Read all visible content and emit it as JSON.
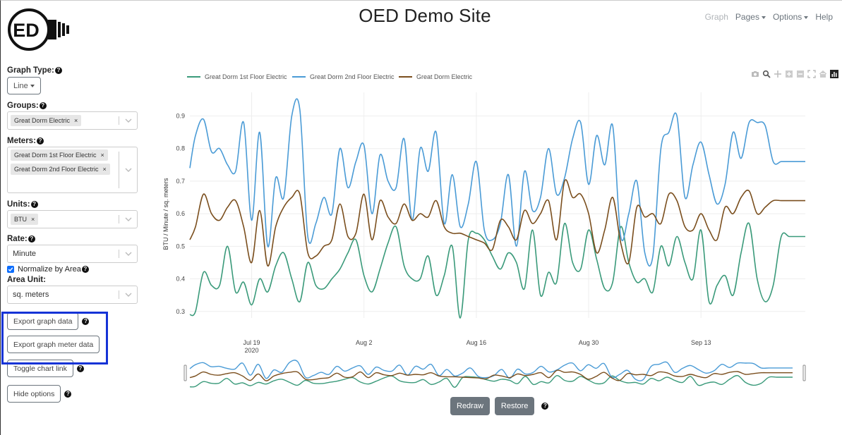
{
  "header": {
    "logo_text": "ED",
    "title": "OED Demo Site",
    "nav": [
      {
        "label": "Graph",
        "disabled": true,
        "dropdown": false
      },
      {
        "label": "Pages",
        "disabled": false,
        "dropdown": true
      },
      {
        "label": "Options",
        "disabled": false,
        "dropdown": true
      },
      {
        "label": "Help",
        "disabled": false,
        "dropdown": false
      }
    ]
  },
  "sidebar": {
    "graph_type": {
      "label": "Graph Type:",
      "value": "Line"
    },
    "groups": {
      "label": "Groups:",
      "tags": [
        "Great Dorm Electric"
      ]
    },
    "meters": {
      "label": "Meters:",
      "tags": [
        "Great Dorm 1st Floor Electric",
        "Great Dorm 2nd Floor Electric"
      ]
    },
    "units": {
      "label": "Units:",
      "tags": [
        "BTU"
      ]
    },
    "rate": {
      "label": "Rate:",
      "value": "Minute"
    },
    "normalize": {
      "label": "Normalize by Area",
      "checked": true
    },
    "area_unit": {
      "label": "Area Unit:",
      "value": "sq. meters"
    },
    "buttons": {
      "export_graph": "Export graph data",
      "export_meter": "Export graph meter data",
      "toggle_link": "Toggle chart link",
      "hide_options": "Hide options"
    }
  },
  "controls": {
    "redraw": "Redraw",
    "restore": "Restore"
  },
  "chart_data": {
    "type": "line",
    "xlabel": "",
    "ylabel": "BTU / Minute / sq. meters",
    "ylim": [
      0.28,
      0.94
    ],
    "y_ticks": [
      "0.3",
      "0.4",
      "0.5",
      "0.6",
      "0.7",
      "0.8",
      "0.9"
    ],
    "x_ticks": [
      {
        "label": "Jul 19",
        "sub": "2020",
        "day": 19
      },
      {
        "label": "Aug 2",
        "sub": "",
        "day": 33
      },
      {
        "label": "Aug 16",
        "sub": "",
        "day": 47
      },
      {
        "label": "Aug 30",
        "sub": "",
        "day": 61
      },
      {
        "label": "Sep 13",
        "sub": "",
        "day": 75
      }
    ],
    "x_range": [
      11.3,
      88.0
    ],
    "legend_position": "top-left",
    "x_days": [
      11.3,
      12,
      13,
      14,
      15,
      16,
      17,
      18,
      19,
      20,
      21,
      22,
      23,
      24,
      25,
      26,
      27,
      28,
      29,
      30,
      31,
      32,
      33,
      34,
      35,
      36,
      37,
      38,
      39,
      40,
      41,
      42,
      43,
      44,
      45,
      46,
      47,
      48,
      49,
      50,
      51,
      52,
      53,
      54,
      55,
      56,
      57,
      58,
      59,
      60,
      61,
      62,
      63,
      64,
      65,
      66,
      67,
      68,
      69,
      70,
      71,
      72,
      73,
      74,
      75,
      76,
      77,
      78,
      79,
      80,
      81,
      82,
      83,
      84,
      85,
      86,
      87,
      88
    ],
    "series": [
      {
        "name": "Great Dorm 1st Floor Electric",
        "color": "#3a9a7a",
        "values": [
          0.29,
          0.3,
          0.42,
          0.38,
          0.38,
          0.5,
          0.36,
          0.39,
          0.32,
          0.4,
          0.36,
          0.44,
          0.48,
          0.4,
          0.33,
          0.45,
          0.38,
          0.37,
          0.4,
          0.43,
          0.48,
          0.52,
          0.41,
          0.36,
          0.43,
          0.51,
          0.56,
          0.44,
          0.4,
          0.4,
          0.47,
          0.35,
          0.41,
          0.5,
          0.28,
          0.52,
          0.54,
          0.52,
          0.47,
          0.43,
          0.48,
          0.45,
          0.37,
          0.55,
          0.35,
          0.42,
          0.39,
          0.57,
          0.45,
          0.43,
          0.55,
          0.46,
          0.37,
          0.39,
          0.56,
          0.45,
          0.39,
          0.4,
          0.36,
          0.5,
          0.44,
          0.53,
          0.45,
          0.4,
          0.55,
          0.33,
          0.38,
          0.41,
          0.35,
          0.48,
          0.57,
          0.4,
          0.33,
          0.38,
          0.53,
          0.53,
          0.53,
          0.53
        ]
      },
      {
        "name": "Great Dorm 2nd Floor Electric",
        "color": "#4a9bd6",
        "values": [
          0.74,
          0.84,
          0.89,
          0.79,
          0.8,
          0.75,
          0.73,
          0.88,
          0.58,
          0.85,
          0.5,
          0.71,
          0.65,
          0.9,
          0.92,
          0.53,
          0.57,
          0.65,
          0.6,
          0.8,
          0.68,
          0.76,
          0.81,
          0.6,
          0.78,
          0.7,
          0.68,
          0.83,
          0.58,
          0.8,
          0.73,
          0.85,
          0.57,
          0.72,
          0.56,
          0.63,
          0.76,
          0.55,
          0.52,
          0.57,
          0.72,
          0.5,
          0.73,
          0.61,
          0.65,
          0.8,
          0.66,
          0.71,
          0.83,
          0.88,
          0.69,
          0.84,
          0.75,
          0.87,
          0.53,
          0.6,
          0.7,
          0.48,
          0.47,
          0.8,
          0.85,
          0.9,
          0.65,
          0.75,
          0.82,
          0.72,
          0.63,
          0.69,
          0.85,
          0.77,
          0.88,
          0.88,
          0.87,
          0.76,
          0.76,
          0.76,
          0.76,
          0.76
        ]
      },
      {
        "name": "Great Dorm Electric",
        "color": "#7a4e1d",
        "values": [
          0.52,
          0.56,
          0.66,
          0.6,
          0.58,
          0.62,
          0.64,
          0.56,
          0.45,
          0.61,
          0.44,
          0.56,
          0.62,
          0.65,
          0.66,
          0.48,
          0.47,
          0.5,
          0.52,
          0.63,
          0.53,
          0.54,
          0.66,
          0.52,
          0.64,
          0.59,
          0.57,
          0.63,
          0.58,
          0.6,
          0.59,
          0.64,
          0.56,
          0.54,
          0.54,
          0.53,
          0.52,
          0.51,
          0.49,
          0.58,
          0.56,
          0.52,
          0.61,
          0.57,
          0.6,
          0.64,
          0.52,
          0.7,
          0.65,
          0.66,
          0.6,
          0.48,
          0.55,
          0.65,
          0.51,
          0.45,
          0.62,
          0.59,
          0.6,
          0.57,
          0.66,
          0.64,
          0.56,
          0.55,
          0.6,
          0.55,
          0.52,
          0.62,
          0.6,
          0.65,
          0.67,
          0.6,
          0.62,
          0.64,
          0.64,
          0.64,
          0.64,
          0.64
        ]
      }
    ]
  }
}
